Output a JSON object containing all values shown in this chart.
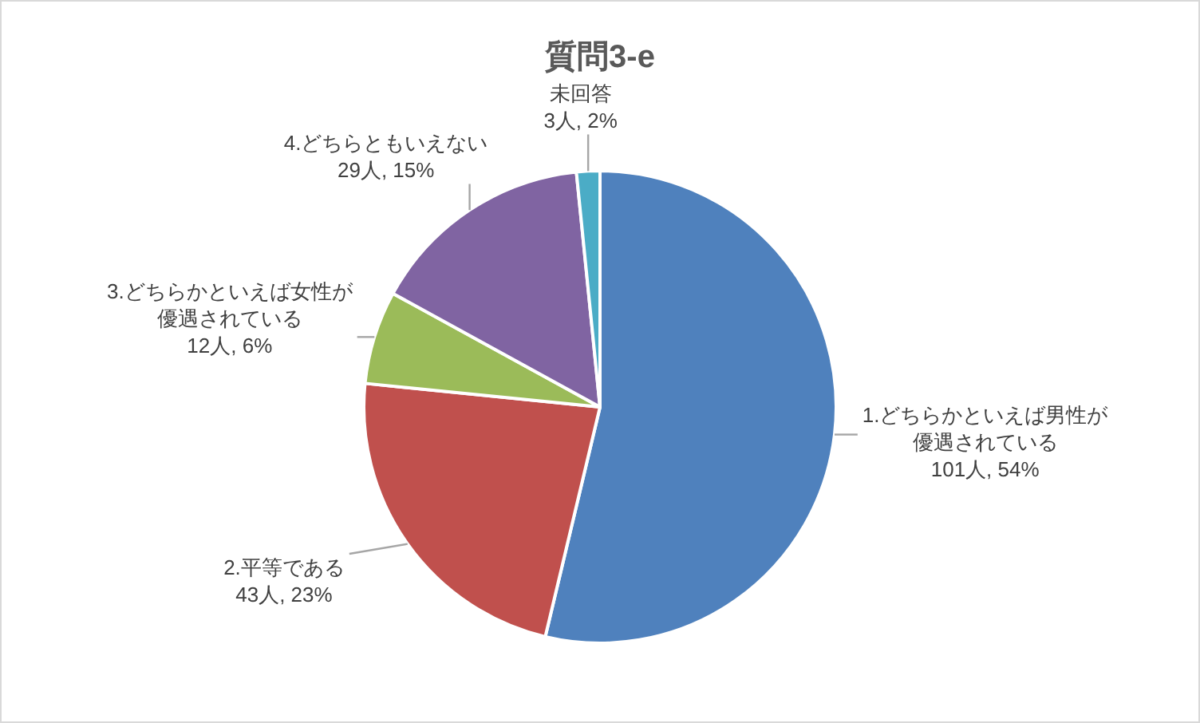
{
  "chart_data": {
    "type": "pie",
    "title": "質問3-e",
    "categories": [
      "1.どちらかといえば男性が優遇されている",
      "2.平等である",
      "3.どちらかといえば女性が優遇されている",
      "4.どちらともいえない",
      "未回答"
    ],
    "values": [
      101,
      43,
      12,
      29,
      3
    ],
    "colors": [
      "#4f81bd",
      "#c0504d",
      "#9bbb59",
      "#8064a2",
      "#4bacc6"
    ],
    "value_labels": [
      "101人, 54%",
      "43人, 23%",
      "12人, 6%",
      "29人, 15%",
      "3人, 2%"
    ]
  }
}
